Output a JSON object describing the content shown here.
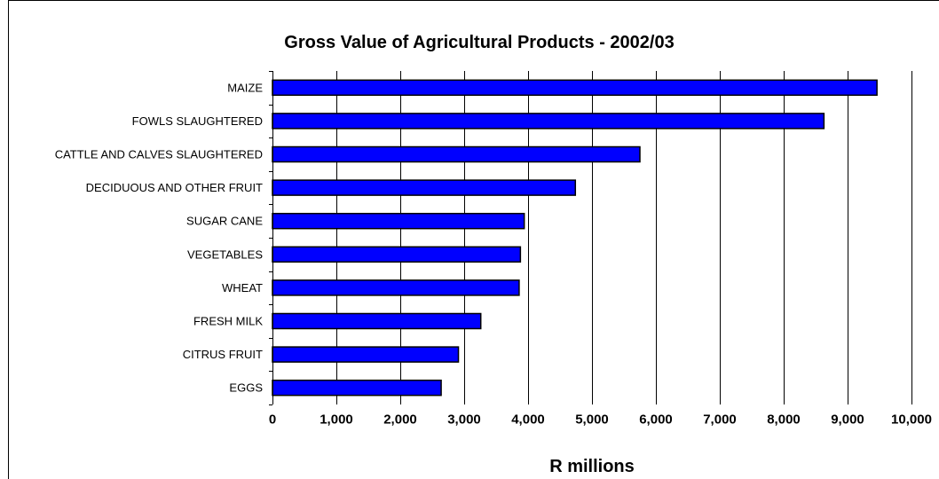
{
  "chart_data": {
    "type": "bar",
    "orientation": "horizontal",
    "title": "Gross Value of Agricultural Products - 2002/03",
    "xlabel": "R millions",
    "ylabel": "",
    "categories": [
      "MAIZE",
      "FOWLS SLAUGHTERED",
      "CATTLE AND CALVES SLAUGHTERED",
      "DECIDUOUS AND OTHER FRUIT",
      "SUGAR CANE",
      "VEGETABLES",
      "WHEAT",
      "FRESH MILK",
      "CITRUS FRUIT",
      "EGGS"
    ],
    "values": [
      9460,
      8630,
      5750,
      4740,
      3940,
      3880,
      3860,
      3260,
      2910,
      2640
    ],
    "xlim": [
      0,
      10000
    ],
    "xticks": [
      0,
      1000,
      2000,
      3000,
      4000,
      5000,
      6000,
      7000,
      8000,
      9000,
      10000
    ],
    "xtick_labels": [
      "0",
      "1,000",
      "2,000",
      "3,000",
      "4,000",
      "5,000",
      "6,000",
      "7,000",
      "8,000",
      "9,000",
      "10,000"
    ],
    "grid": "vertical",
    "legend": "none",
    "bar_color": "#0000ff",
    "bar_edge_color": "#000000",
    "grid_color": "#000000"
  }
}
